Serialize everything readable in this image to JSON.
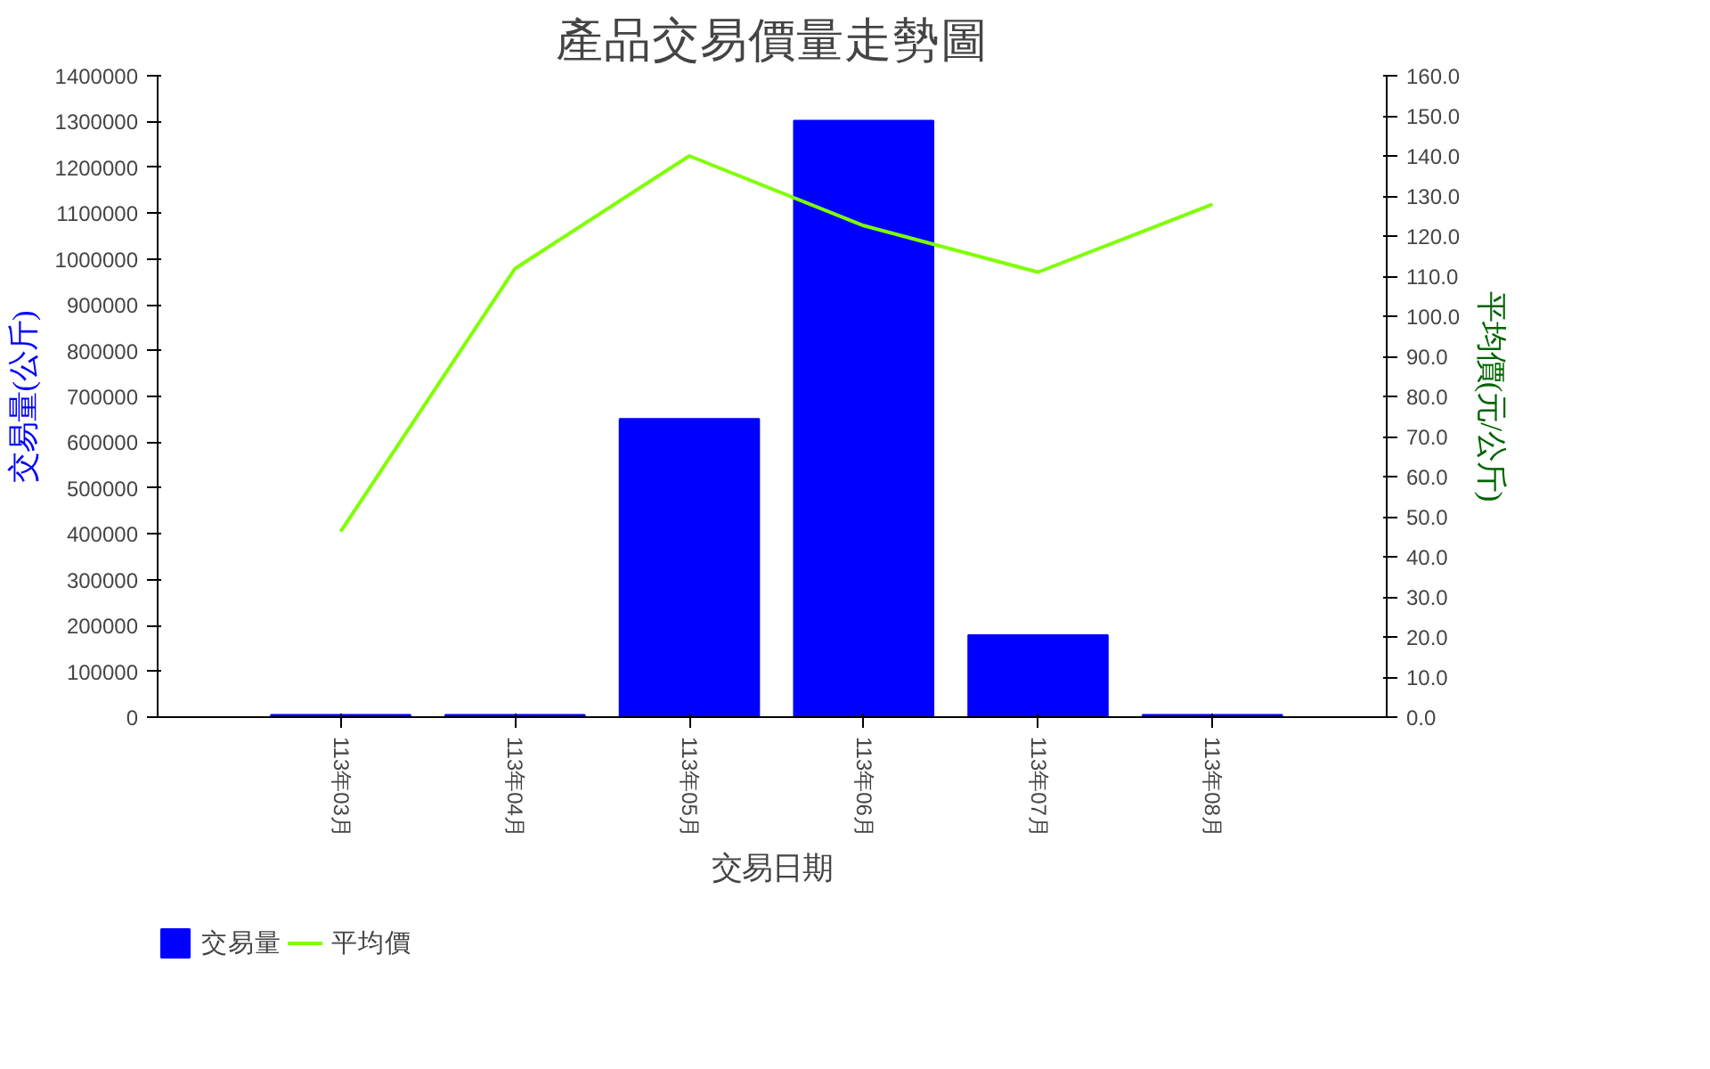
{
  "chart_data": {
    "type": "bar",
    "title": "產品交易價量走勢圖",
    "xlabel": "交易日期",
    "ylabel": "交易量(公斤)",
    "y2label": "平均價(元/公斤)",
    "categories": [
      "113年03月",
      "113年04月",
      "113年05月",
      "113年06月",
      "113年07月",
      "113年08月"
    ],
    "series": [
      {
        "name": "交易量",
        "color": "#0000ff",
        "values": [
          5000,
          5000,
          651000,
          1302000,
          179000,
          5000
        ]
      },
      {
        "name": "平均價",
        "type": "line",
        "axis": "y2",
        "color": "#7fff00",
        "values": [
          46.3,
          111.9,
          140.0,
          122.6,
          111.0,
          127.9
        ]
      }
    ],
    "ylim": [
      0,
      1400000
    ],
    "yticks": [
      0,
      100000,
      200000,
      300000,
      400000,
      500000,
      600000,
      700000,
      800000,
      900000,
      1000000,
      1100000,
      1200000,
      1300000,
      1400000
    ],
    "y2lim": [
      0,
      160
    ],
    "y2ticks": [
      {
        "value": 0,
        "label": "0.0"
      },
      {
        "value": 10,
        "label": "10.0"
      },
      {
        "value": 20,
        "label": "20.0"
      },
      {
        "value": 30,
        "label": "30.0"
      },
      {
        "value": 40,
        "label": "40.0"
      },
      {
        "value": 50,
        "label": "50.0"
      },
      {
        "value": 60,
        "label": "60.0"
      },
      {
        "value": 70,
        "label": "70.0"
      },
      {
        "value": 80,
        "label": "80.0"
      },
      {
        "value": 90,
        "label": "90.0"
      },
      {
        "value": 100,
        "label": "100.0"
      },
      {
        "value": 110,
        "label": "110.0"
      },
      {
        "value": 120,
        "label": "120.0"
      },
      {
        "value": 130,
        "label": "130.0"
      },
      {
        "value": 140,
        "label": "140.0"
      },
      {
        "value": 150,
        "label": "150.0"
      },
      {
        "value": 160,
        "label": "160.0"
      }
    ],
    "legend": "bottom left",
    "grid": false
  }
}
